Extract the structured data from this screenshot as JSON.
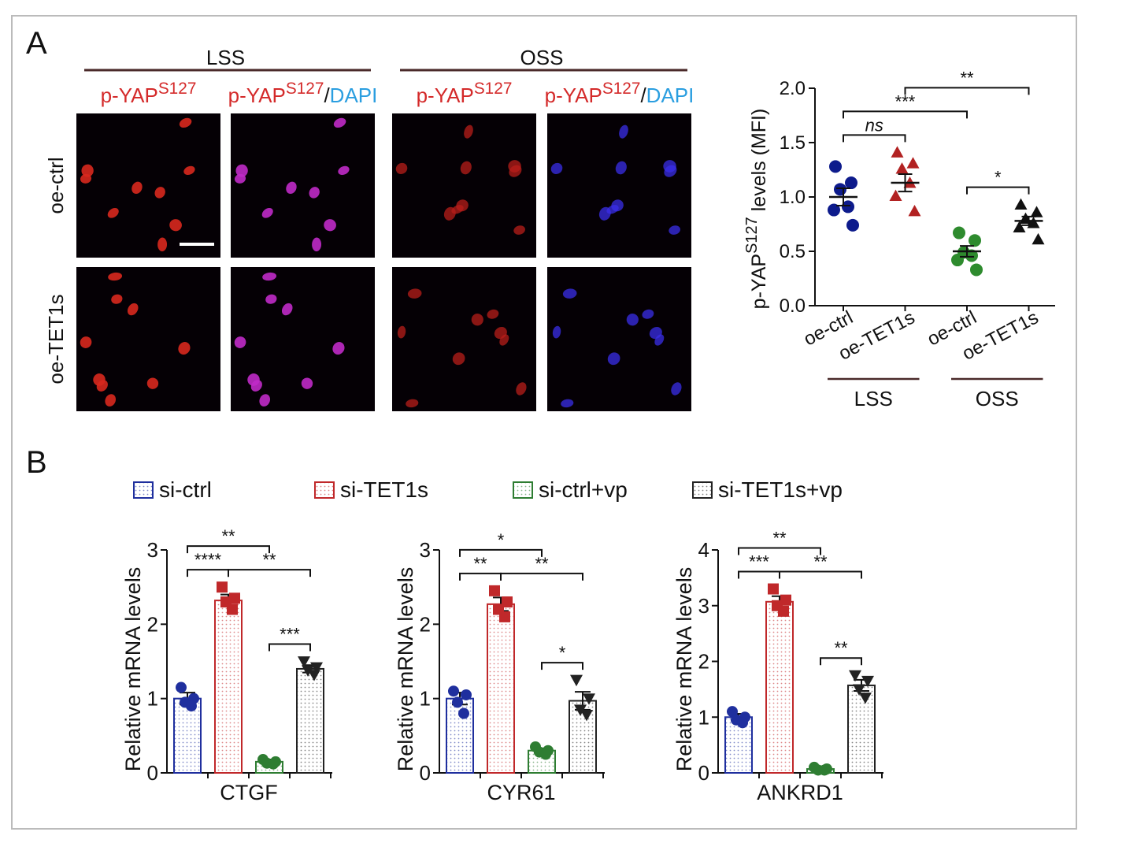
{
  "panel_labels": [
    "A",
    "B"
  ],
  "image_panel": {
    "groups": [
      {
        "name": "LSS",
        "columns": [
          [
            {
              "text": "p-YAP",
              "color": "#d42a2a"
            },
            {
              "text": "S127",
              "sup": true,
              "color": "#d42a2a"
            }
          ],
          [
            {
              "text": "p-YAP",
              "color": "#d42a2a"
            },
            {
              "text": "S127",
              "sup": true,
              "color": "#d42a2a"
            },
            {
              "text": "/",
              "color": "#111111"
            },
            {
              "text": "DAPI",
              "color": "#2a9ee0"
            }
          ]
        ]
      },
      {
        "name": "OSS",
        "columns": [
          [
            {
              "text": "p-YAP",
              "color": "#d42a2a"
            },
            {
              "text": "S127",
              "sup": true,
              "color": "#d42a2a"
            }
          ],
          [
            {
              "text": "p-YAP",
              "color": "#d42a2a"
            },
            {
              "text": "S127",
              "sup": true,
              "color": "#d42a2a"
            },
            {
              "text": "/",
              "color": "#111111"
            },
            {
              "text": "DAPI",
              "color": "#2a9ee0"
            }
          ]
        ]
      }
    ],
    "rows": [
      "oe-ctrl",
      "oe-TET1s"
    ]
  },
  "legend": {
    "items": [
      {
        "name": "si-ctrl",
        "color": "#1f2f9e"
      },
      {
        "name": "si-TET1s",
        "color": "#c0282a"
      },
      {
        "name": "si-ctrl+vp",
        "color": "#2e7d32"
      },
      {
        "name": "si-TET1s+vp",
        "color": "#222222"
      }
    ]
  },
  "chart_data": [
    {
      "type": "scatter",
      "ylabel": [
        {
          "text": "p-YAP"
        },
        {
          "text": "S127",
          "sup": true
        },
        {
          "text": " levels (MFI)"
        }
      ],
      "ylim": [
        0,
        2
      ],
      "yticks": [
        {
          "value": 0,
          "label": "0.0"
        },
        {
          "value": 0.5,
          "label": "0.5"
        },
        {
          "value": 1,
          "label": "1.0"
        },
        {
          "value": 1.5,
          "label": "1.5"
        },
        {
          "value": 2,
          "label": "2.0"
        }
      ],
      "groups": [
        {
          "category": "oe-ctrl",
          "color": "#0d1b8c",
          "marker": "circle",
          "points": [
            1.28,
            1.13,
            1.07,
            0.91,
            0.88,
            0.74
          ],
          "mean": 1.0,
          "sem": 0.08
        },
        {
          "category": "oe-TET1s",
          "color": "#b22222",
          "marker": "triangle",
          "points": [
            1.41,
            1.31,
            1.26,
            1.13,
            1.01,
            0.87
          ],
          "mean": 1.13,
          "sem": 0.08
        },
        {
          "category": "oe-ctrl",
          "color": "#2e8b2e",
          "marker": "circle",
          "points": [
            0.67,
            0.6,
            0.49,
            0.46,
            0.42,
            0.33
          ],
          "mean": 0.5,
          "sem": 0.05
        },
        {
          "category": "oe-TET1s",
          "color": "#111111",
          "marker": "triangle",
          "points": [
            0.93,
            0.86,
            0.8,
            0.76,
            0.72,
            0.61
          ],
          "mean": 0.78,
          "sem": 0.04
        }
      ],
      "category_groups": [
        {
          "label": "LSS",
          "members": [
            0,
            1
          ]
        },
        {
          "label": "OSS",
          "members": [
            2,
            3
          ]
        }
      ],
      "annotations": [
        {
          "pair": [
            0,
            1
          ],
          "text": "ns"
        },
        {
          "pair": [
            2,
            3
          ],
          "text": "*"
        },
        {
          "pair": [
            0,
            2
          ],
          "text": "***"
        },
        {
          "pair": [
            1,
            3
          ],
          "text": "**"
        }
      ]
    },
    {
      "type": "bar",
      "xlabel": "CTGF",
      "ylabel": "Relative mRNA levels",
      "ylim": [
        0,
        3
      ],
      "yticks": [
        0,
        1,
        2,
        3
      ],
      "values": [
        1.0,
        2.32,
        0.15,
        1.4
      ],
      "errors": [
        0.08,
        0.08,
        0.03,
        0.05
      ],
      "points": [
        [
          1.15,
          1.0,
          0.95,
          0.9
        ],
        [
          2.5,
          2.35,
          2.3,
          2.2
        ],
        [
          0.18,
          0.15,
          0.13,
          0.12
        ],
        [
          1.5,
          1.42,
          1.38,
          1.32
        ]
      ],
      "annotations": [
        {
          "pair": [
            0,
            1
          ],
          "text": "****"
        },
        {
          "pair": [
            1,
            3
          ],
          "text": "**"
        },
        {
          "pair": [
            2,
            3
          ],
          "text": "***"
        },
        {
          "pair": [
            0,
            2
          ],
          "text": "**"
        }
      ]
    },
    {
      "type": "bar",
      "xlabel": "CYR61",
      "ylabel": "Relative mRNA levels",
      "ylim": [
        0,
        3
      ],
      "yticks": [
        0,
        1,
        2,
        3
      ],
      "values": [
        1.0,
        2.27,
        0.3,
        0.97
      ],
      "errors": [
        0.08,
        0.09,
        0.03,
        0.12
      ],
      "points": [
        [
          1.1,
          1.05,
          0.95,
          0.8
        ],
        [
          2.45,
          2.3,
          2.2,
          2.1
        ],
        [
          0.35,
          0.3,
          0.28,
          0.25
        ],
        [
          1.25,
          1.0,
          0.85,
          0.78
        ]
      ],
      "annotations": [
        {
          "pair": [
            0,
            1
          ],
          "text": "**"
        },
        {
          "pair": [
            1,
            3
          ],
          "text": "**"
        },
        {
          "pair": [
            2,
            3
          ],
          "text": "*"
        },
        {
          "pair": [
            0,
            2
          ],
          "text": "*"
        }
      ]
    },
    {
      "type": "bar",
      "xlabel": "ANKRD1",
      "ylabel": "Relative mRNA levels",
      "ylim": [
        0,
        4
      ],
      "yticks": [
        0,
        1,
        2,
        3,
        4
      ],
      "values": [
        1.0,
        3.07,
        0.07,
        1.57
      ],
      "errors": [
        0.06,
        0.1,
        0.02,
        0.1
      ],
      "points": [
        [
          1.1,
          1.0,
          0.95,
          0.9
        ],
        [
          3.3,
          3.1,
          3.0,
          2.9
        ],
        [
          0.1,
          0.07,
          0.05,
          0.05
        ],
        [
          1.75,
          1.65,
          1.5,
          1.35
        ]
      ],
      "annotations": [
        {
          "pair": [
            0,
            1
          ],
          "text": "***"
        },
        {
          "pair": [
            1,
            3
          ],
          "text": "**"
        },
        {
          "pair": [
            2,
            3
          ],
          "text": "**"
        },
        {
          "pair": [
            0,
            2
          ],
          "text": "**"
        }
      ]
    }
  ]
}
